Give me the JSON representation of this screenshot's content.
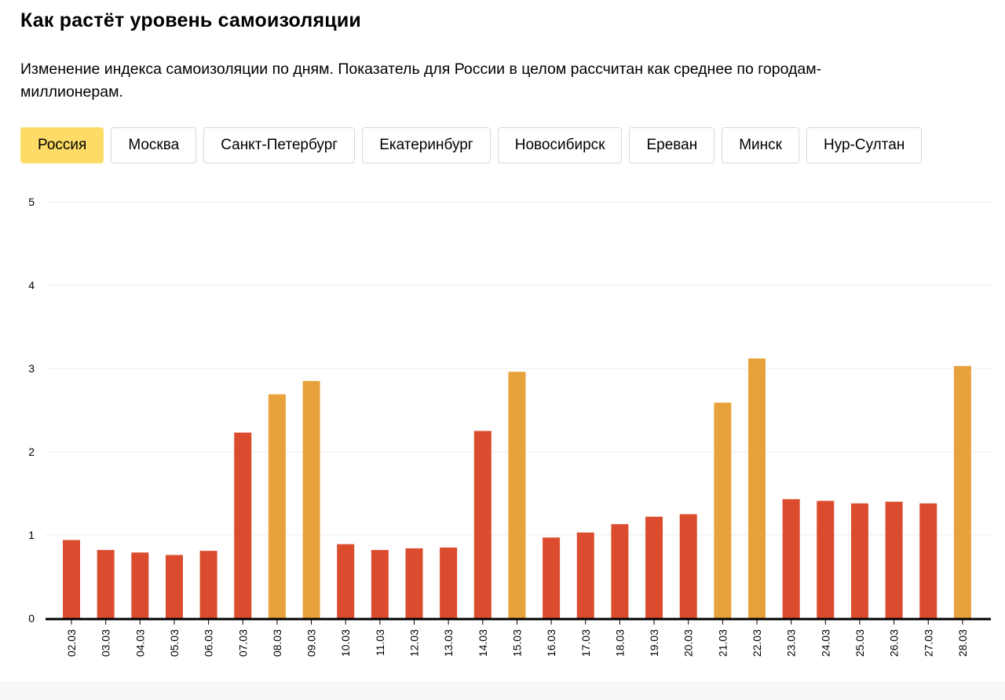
{
  "header": {
    "title": "Как растёт уровень самоизоляции",
    "subtitle": "Изменение индекса самоизоляции по дням. Показатель для России в целом рассчитан как среднее по городам-миллионерам."
  },
  "tabs": [
    {
      "label": "Россия",
      "active": true
    },
    {
      "label": "Москва",
      "active": false
    },
    {
      "label": "Санкт-Петербург",
      "active": false
    },
    {
      "label": "Екатеринбург",
      "active": false
    },
    {
      "label": "Новосибирск",
      "active": false
    },
    {
      "label": "Ереван",
      "active": false
    },
    {
      "label": "Минск",
      "active": false
    },
    {
      "label": "Нур-Султан",
      "active": false
    }
  ],
  "colors": {
    "weekday": "#db4c2e",
    "weekend": "#e8a23c",
    "active_tab": "#fcdb66",
    "axis": "#000000",
    "grid": "#eeeeee"
  },
  "chart_data": {
    "type": "bar",
    "categories": [
      "02.03",
      "03.03",
      "04.03",
      "05.03",
      "06.03",
      "07.03",
      "08.03",
      "09.03",
      "10.03",
      "11.03",
      "12.03",
      "13.03",
      "14.03",
      "15.03",
      "16.03",
      "17.03",
      "18.03",
      "19.03",
      "20.03",
      "21.03",
      "22.03",
      "23.03",
      "24.03",
      "25.03",
      "26.03",
      "27.03",
      "28.03"
    ],
    "values": [
      0.94,
      0.82,
      0.79,
      0.76,
      0.81,
      2.23,
      2.69,
      2.85,
      0.89,
      0.82,
      0.84,
      0.85,
      2.25,
      2.96,
      0.97,
      1.03,
      1.13,
      1.22,
      1.25,
      2.59,
      3.12,
      1.43,
      1.41,
      1.38,
      1.4,
      1.38,
      3.03
    ],
    "weekend": [
      false,
      false,
      false,
      false,
      false,
      false,
      true,
      true,
      false,
      false,
      false,
      false,
      false,
      true,
      false,
      false,
      false,
      false,
      false,
      true,
      true,
      false,
      false,
      false,
      false,
      false,
      true
    ],
    "yticks": [
      0,
      1,
      2,
      3,
      4,
      5
    ],
    "ylim": [
      0,
      5
    ],
    "grid": true
  }
}
